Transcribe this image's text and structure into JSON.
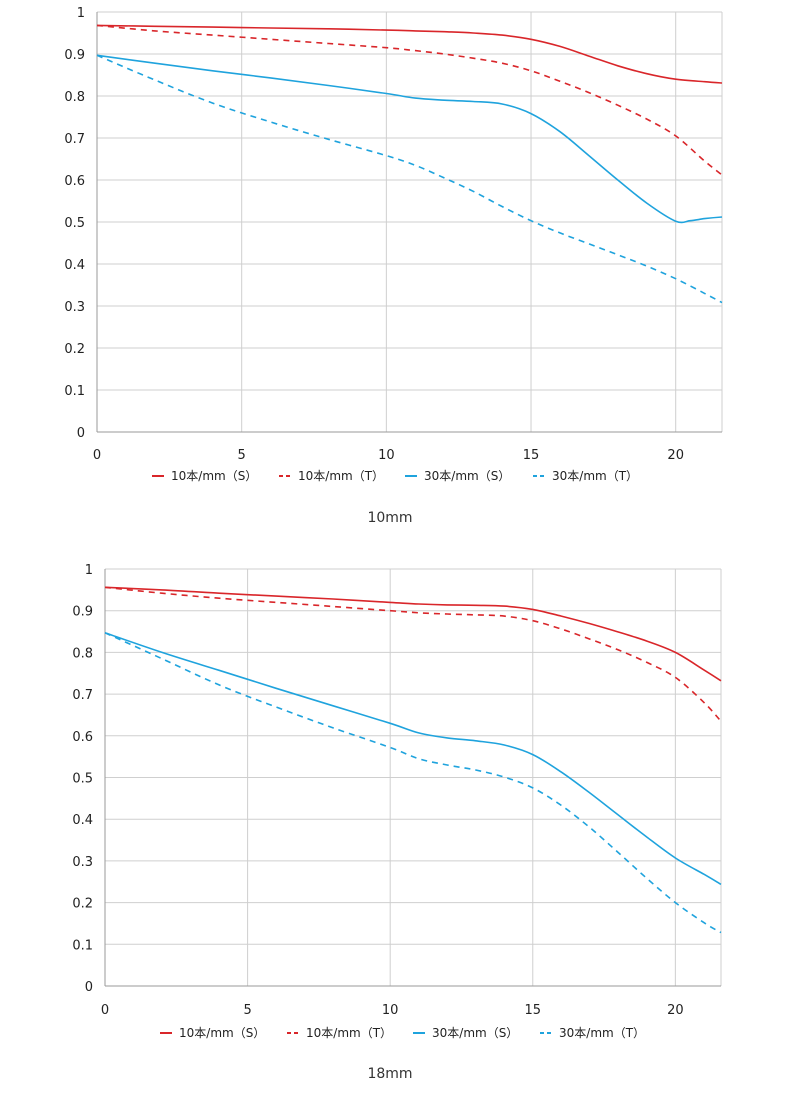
{
  "colors": {
    "red": "#d9262a",
    "blue": "#1fa3dd",
    "grid": "#cfcfcf",
    "axis": "#9a9a9a"
  },
  "chart_data": [
    {
      "type": "line",
      "title": "",
      "caption": "10mm",
      "xlabel": "",
      "ylabel": "",
      "xlim": [
        0,
        21.6
      ],
      "ylim": [
        0,
        1
      ],
      "x_ticks": [
        0,
        5,
        10,
        15,
        20
      ],
      "y_ticks": [
        0,
        0.1,
        0.2,
        0.3,
        0.4,
        0.5,
        0.6,
        0.7,
        0.8,
        0.9,
        1
      ],
      "y_tick_labels": [
        "0",
        "0.1",
        "0.2",
        "0.3",
        "0.4",
        "0.5",
        "0.6",
        "0.7",
        "0.8",
        "0.9",
        "1"
      ],
      "grid": true,
      "legend_position": "bottom",
      "series": [
        {
          "name": "10本/mm（S）",
          "color": "#d9262a",
          "dash": false,
          "x": [
            0,
            2,
            4,
            6,
            8,
            10,
            11,
            12,
            13,
            14,
            15,
            16,
            17,
            18,
            19,
            20,
            21,
            21.6
          ],
          "y": [
            0.968,
            0.966,
            0.964,
            0.962,
            0.96,
            0.957,
            0.955,
            0.953,
            0.95,
            0.945,
            0.935,
            0.918,
            0.895,
            0.872,
            0.853,
            0.84,
            0.834,
            0.831
          ]
        },
        {
          "name": "10本/mm（T）",
          "color": "#d9262a",
          "dash": true,
          "x": [
            0,
            2,
            4,
            6,
            8,
            10,
            11,
            12,
            13,
            14,
            15,
            16,
            17,
            18,
            19,
            20,
            21,
            21.6
          ],
          "y": [
            0.968,
            0.955,
            0.945,
            0.935,
            0.925,
            0.915,
            0.908,
            0.9,
            0.89,
            0.878,
            0.86,
            0.835,
            0.808,
            0.778,
            0.745,
            0.705,
            0.645,
            0.612
          ]
        },
        {
          "name": "30本/mm（S）",
          "color": "#1fa3dd",
          "dash": false,
          "x": [
            0,
            2,
            4,
            6,
            8,
            10,
            11,
            12,
            13,
            14,
            15,
            16,
            17,
            18,
            19,
            20,
            20.5,
            21,
            21.6
          ],
          "y": [
            0.897,
            0.878,
            0.86,
            0.843,
            0.825,
            0.806,
            0.795,
            0.79,
            0.787,
            0.781,
            0.758,
            0.715,
            0.658,
            0.6,
            0.545,
            0.502,
            0.503,
            0.508,
            0.512
          ]
        },
        {
          "name": "30本/mm（T）",
          "color": "#1fa3dd",
          "dash": true,
          "x": [
            0,
            2,
            4,
            6,
            8,
            10,
            11,
            12,
            13,
            14,
            15,
            16,
            17,
            18,
            19,
            20,
            21,
            21.6
          ],
          "y": [
            0.897,
            0.838,
            0.783,
            0.738,
            0.697,
            0.658,
            0.635,
            0.605,
            0.573,
            0.537,
            0.503,
            0.474,
            0.448,
            0.422,
            0.395,
            0.365,
            0.33,
            0.308
          ]
        }
      ],
      "legend": [
        {
          "label": "10本/mm（S）"
        },
        {
          "label": "10本/mm（T）"
        },
        {
          "label": "30本/mm（S）"
        },
        {
          "label": "30本/mm（T）"
        }
      ]
    },
    {
      "type": "line",
      "title": "",
      "caption": "18mm",
      "xlabel": "",
      "ylabel": "",
      "xlim": [
        0,
        21.6
      ],
      "ylim": [
        0,
        1
      ],
      "x_ticks": [
        0,
        5,
        10,
        15,
        20
      ],
      "y_ticks": [
        0,
        0.1,
        0.2,
        0.3,
        0.4,
        0.5,
        0.6,
        0.7,
        0.8,
        0.9,
        1
      ],
      "y_tick_labels": [
        "0",
        "0.1",
        "0.2",
        "0.3",
        "0.4",
        "0.5",
        "0.6",
        "0.7",
        "0.8",
        "0.9",
        "1"
      ],
      "grid": true,
      "legend_position": "bottom",
      "series": [
        {
          "name": "10本/mm（S）",
          "color": "#d9262a",
          "dash": false,
          "x": [
            0,
            2,
            4,
            6,
            8,
            10,
            11,
            12,
            13,
            14,
            15,
            16,
            17,
            18,
            19,
            20,
            21,
            21.6
          ],
          "y": [
            0.956,
            0.95,
            0.942,
            0.935,
            0.928,
            0.92,
            0.916,
            0.914,
            0.913,
            0.911,
            0.903,
            0.887,
            0.869,
            0.849,
            0.827,
            0.8,
            0.758,
            0.732
          ]
        },
        {
          "name": "10本/mm（T）",
          "color": "#d9262a",
          "dash": true,
          "x": [
            0,
            2,
            4,
            6,
            8,
            10,
            11,
            12,
            13,
            14,
            15,
            16,
            17,
            18,
            19,
            20,
            21,
            21.6
          ],
          "y": [
            0.956,
            0.942,
            0.93,
            0.92,
            0.91,
            0.9,
            0.895,
            0.892,
            0.89,
            0.887,
            0.876,
            0.856,
            0.832,
            0.806,
            0.776,
            0.74,
            0.68,
            0.635
          ]
        },
        {
          "name": "30本/mm（S）",
          "color": "#1fa3dd",
          "dash": false,
          "x": [
            0,
            2,
            4,
            6,
            8,
            10,
            11,
            12,
            13,
            14,
            15,
            16,
            17,
            18,
            19,
            20,
            21,
            21.6
          ],
          "y": [
            0.847,
            0.8,
            0.757,
            0.714,
            0.672,
            0.63,
            0.607,
            0.595,
            0.588,
            0.578,
            0.555,
            0.513,
            0.463,
            0.41,
            0.357,
            0.307,
            0.268,
            0.244
          ]
        },
        {
          "name": "30本/mm（T）",
          "color": "#1fa3dd",
          "dash": true,
          "x": [
            0,
            2,
            4,
            6,
            8,
            10,
            11,
            12,
            13,
            14,
            15,
            16,
            17,
            18,
            19,
            20,
            21,
            21.6
          ],
          "y": [
            0.847,
            0.785,
            0.722,
            0.669,
            0.619,
            0.572,
            0.545,
            0.53,
            0.518,
            0.501,
            0.475,
            0.433,
            0.38,
            0.32,
            0.258,
            0.2,
            0.152,
            0.128
          ]
        }
      ],
      "legend": [
        {
          "label": "10本/mm（S）"
        },
        {
          "label": "10本/mm（T）"
        },
        {
          "label": "30本/mm（S）"
        },
        {
          "label": "30本/mm（T）"
        }
      ]
    }
  ]
}
